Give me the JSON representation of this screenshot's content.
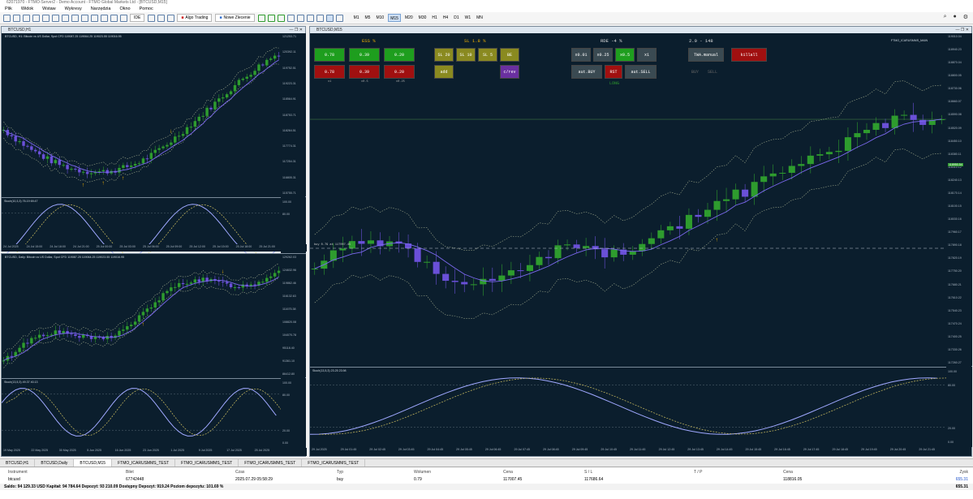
{
  "title_bar": "62071970 - FTMO-Server2 - Demo Account - FTMO Global Markets Ltd - [BTCUSD,M15]",
  "menu": [
    "Plik",
    "Widok",
    "Wstaw",
    "Wykresy",
    "Narzędzia",
    "Okno",
    "Pomoc"
  ],
  "toolbar": {
    "ide_label": "IDE",
    "algo_label": "Algo Trading",
    "new_order_label": "Nowe Zlecenie",
    "timeframes": [
      "M1",
      "M5",
      "M10",
      "M15",
      "M20",
      "M30",
      "H1",
      "H4",
      "D1",
      "W1",
      "MN"
    ],
    "active_timeframe": "M15"
  },
  "colors": {
    "chart_bg": "#0b1e2d",
    "bull": "#2e9c2e",
    "bear": "#6a50d8",
    "ma": "#7b68ee",
    "stoch_main": "#9fa8ff",
    "stoch_signal": "#d0c060"
  },
  "chart_h1": {
    "title": "BTCUSD,H1",
    "info": "BTCUSD, H1: Bitcoin vs US Dollar, Spot CFD  119087.25 119064.25 119023.55 119016.95",
    "price_labels": [
      "121253.71",
      "120392.11",
      "119752.51",
      "119223.31",
      "118564.91",
      "118753.71",
      "118264.51",
      "117774.31",
      "117254.31",
      "116805.31",
      "115755.71"
    ],
    "stoch_title": "Stoch(10,3,3) 76.19 69.47",
    "stoch_labels": [
      "100.00",
      "80.00",
      "20.00",
      "0.00"
    ],
    "time_labels": [
      "24 Jul 2025",
      "24 Jul 15:00",
      "24 Jul 18:00",
      "24 Jul 21:00",
      "25 Jul 00:00",
      "25 Jul 03:00",
      "25 Jul 06:00",
      "25 Jul 09:00",
      "25 Jul 12:00",
      "25 Jul 15:00",
      "25 Jul 18:00",
      "25 Jul 21:00"
    ]
  },
  "chart_daily": {
    "title": "BTCUSD,Daily",
    "info": "BTCUSD, Daily: Bitcoin vs US Dollar, Spot CFD  119087.25 119064.25 119023.55 119016.95",
    "price_labels": [
      "129262.03",
      "124632.96",
      "119862.46",
      "116132.63",
      "111675.38",
      "108820.08",
      "104070.78",
      "95118.40",
      "91361.10",
      "86412.80"
    ],
    "stoch_title": "Stoch(13,5,3) 49.37 40.13",
    "stoch_labels": [
      "100.00",
      "80.00",
      "20.00",
      "0.00"
    ],
    "time_labels": [
      "19 May 2025",
      "22 May 2025",
      "30 May 2025",
      "5 Jun 2025",
      "16 Jun 2025",
      "23 Jun 2025",
      "1 Jul 2025",
      "9 Jul 2025",
      "17 Jul 2025",
      "25 Jul 2025"
    ]
  },
  "chart_m15": {
    "title": "BTCUSD,M15",
    "info": "FTMO_ICARUSMMS_MAIN",
    "price_labels": [
      "119010.04",
      "118940.23",
      "118870.04",
      "118800.05",
      "118730.06",
      "118660.07",
      "118590.08",
      "118520.09",
      "118450.10",
      "118380.11",
      "118310.12",
      "118240.13",
      "118170.14",
      "118100.15",
      "118030.16",
      "117960.17",
      "117890.18",
      "117820.19",
      "117750.20",
      "117680.21",
      "117610.22",
      "117540.23",
      "117470.24",
      "117400.25",
      "117330.26",
      "117260.27"
    ],
    "current_price": "118950.54",
    "stoch_title": "Stoch(13,5,3) 23.25 23.98",
    "stoch_labels": [
      "100.00",
      "80.00",
      "20.00",
      "0.00"
    ],
    "time_labels": [
      "29 Jul 2025",
      "29 Jul 01:45",
      "29 Jul 02:45",
      "29 Jul 03:45",
      "29 Jul 04:45",
      "29 Jul 05:45",
      "29 Jul 06:45",
      "29 Jul 07:45",
      "29 Jul 08:45",
      "29 Jul 09:45",
      "29 Jul 10:45",
      "29 Jul 11:45",
      "29 Jul 12:45",
      "29 Jul 13:45",
      "29 Jul 14:45",
      "29 Jul 15:45",
      "29 Jul 16:45",
      "29 Jul 17:45",
      "29 Jul 18:45",
      "29 Jul 19:45",
      "29 Jul 20:45",
      "29 Jul 21:45"
    ],
    "order_line": "buy 0.79 at 117007.45",
    "long_label": "LONG",
    "panel": {
      "h_risk": "ESS %",
      "h_sl": "SL 1.8 %",
      "h_rde": "RDE -4 %",
      "h_rr": "2.0 - 148",
      "risk_top": [
        "0.78",
        "0.39",
        "0.20"
      ],
      "risk_bottom": [
        "0.78",
        "0.39",
        "0.20"
      ],
      "risk_sub": [
        "x1",
        "x0.5",
        "x0.25"
      ],
      "sl_row": [
        "SL 20",
        "SL 10",
        "SL 5",
        "BE"
      ],
      "add": "add",
      "crev": "c/rev",
      "rde_row": [
        "x0.01",
        "x0.25",
        "x0.5",
        "x1"
      ],
      "aut_buy": "aut.BUY",
      "rst": "RST",
      "aut_sell": "aut.SELL",
      "twa": "TWA.manual",
      "killall": "killall",
      "buy": "BUY",
      "sell": "SELL"
    }
  },
  "bottom_tabs": [
    "BTCUSD,H1",
    "BTCUSD,Daily",
    "BTCUSD,M15",
    "FTMO_ICARUSMMS_TEST",
    "FTMO_ICARUSMMS_TEST",
    "FTMO_ICARUSMMS_TEST",
    "FTMO_ICARUSMMS_TEST"
  ],
  "terminal": {
    "headers": [
      "Instrument",
      "Bilet",
      "Czas",
      "Typ",
      "Wolumen",
      "Cena",
      "S / L",
      "T / P",
      "Cena",
      "Zysk"
    ],
    "row": [
      "btcusd",
      "67742448",
      "2025.07.29 05:58:29",
      "buy",
      "0.79",
      "117007.45",
      "117686.64",
      "",
      "118816.05",
      "655.31"
    ],
    "balance": "Saldo: 94 129.33 USD  Kapitał: 94 784.64  Depozyt: 93 210.09  Dostępny Depozyt: 919.24  Poziom depozytu: 101.69 %",
    "total_profit": "655.31"
  }
}
